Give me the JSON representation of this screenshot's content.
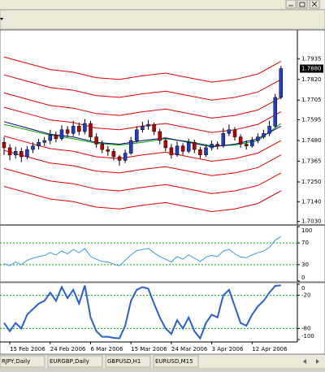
{
  "chart_data": [
    {
      "type": "candlestick",
      "categories": [
        null,
        "15 Feb 2006",
        null,
        null,
        null,
        null,
        null,
        null,
        "24 Feb 2006",
        null,
        null,
        null,
        null,
        null,
        null,
        "6 Mar 2006",
        null,
        null,
        null,
        null,
        null,
        null,
        "15 Mar 2006",
        null,
        null,
        null,
        null,
        null,
        null,
        "24 Mar 2006",
        null,
        null,
        null,
        null,
        null,
        null,
        "3 Apr 2006",
        null,
        null,
        null,
        null,
        null,
        null,
        "12 Apr 2006",
        null,
        null,
        null,
        null,
        null
      ],
      "open": [
        1.747,
        1.744,
        1.74,
        1.742,
        1.739,
        1.743,
        1.745,
        1.747,
        1.748,
        1.751,
        1.749,
        1.754,
        1.752,
        1.756,
        1.753,
        1.7575,
        1.75,
        1.746,
        1.743,
        1.742,
        1.739,
        1.737,
        1.741,
        1.748,
        1.754,
        1.756,
        1.757,
        1.753,
        1.748,
        1.744,
        1.74,
        1.745,
        1.742,
        1.747,
        1.743,
        1.74,
        1.744,
        1.746,
        1.745,
        1.752,
        1.754,
        1.75,
        1.746,
        1.745,
        1.748,
        1.75,
        1.752,
        1.756,
        1.772
      ],
      "high": [
        1.75,
        1.746,
        1.7445,
        1.744,
        1.745,
        1.747,
        1.749,
        1.75,
        1.754,
        1.753,
        1.7565,
        1.756,
        1.759,
        1.758,
        1.76,
        1.759,
        1.752,
        1.748,
        1.745,
        1.7435,
        1.74,
        1.743,
        1.75,
        1.756,
        1.7585,
        1.7595,
        1.758,
        1.7545,
        1.7495,
        1.746,
        1.7475,
        1.7465,
        1.749,
        1.7485,
        1.7445,
        1.746,
        1.748,
        1.7475,
        1.755,
        1.757,
        1.7555,
        1.7515,
        1.748,
        1.75,
        1.752,
        1.754,
        1.759,
        1.774,
        1.7895
      ],
      "low": [
        1.74,
        1.737,
        1.738,
        1.736,
        1.7375,
        1.741,
        1.743,
        1.745,
        1.746,
        1.747,
        1.748,
        1.75,
        1.7505,
        1.751,
        1.7515,
        1.748,
        1.744,
        1.741,
        1.7395,
        1.737,
        1.734,
        1.7355,
        1.74,
        1.747,
        1.7525,
        1.754,
        1.751,
        1.746,
        1.742,
        1.738,
        1.739,
        1.74,
        1.741,
        1.741,
        1.738,
        1.739,
        1.7425,
        1.743,
        1.744,
        1.7505,
        1.748,
        1.744,
        1.743,
        1.744,
        1.7465,
        1.749,
        1.7505,
        1.755,
        1.771
      ],
      "close": [
        1.744,
        1.74,
        1.742,
        1.739,
        1.743,
        1.745,
        1.747,
        1.748,
        1.751,
        1.749,
        1.754,
        1.752,
        1.756,
        1.753,
        1.7575,
        1.75,
        1.746,
        1.743,
        1.742,
        1.739,
        1.737,
        1.741,
        1.748,
        1.754,
        1.756,
        1.757,
        1.753,
        1.748,
        1.744,
        1.74,
        1.745,
        1.742,
        1.747,
        1.743,
        1.74,
        1.744,
        1.746,
        1.745,
        1.752,
        1.754,
        1.75,
        1.746,
        1.745,
        1.748,
        1.75,
        1.752,
        1.756,
        1.772,
        1.788
      ],
      "up_color": "#1f3fc8",
      "down_color": "#c00000",
      "x": [
        0,
        4,
        8,
        12,
        16,
        20,
        24,
        28,
        32,
        36,
        40,
        44,
        48
      ],
      "series": [
        {
          "color": "#e00000",
          "values": [
            1.7945,
            1.791,
            1.7875,
            1.786,
            1.783,
            1.782,
            1.784,
            1.7855,
            1.783,
            1.7805,
            1.782,
            1.785,
            1.792
          ]
        },
        {
          "color": "#e00000",
          "values": [
            1.7845,
            1.781,
            1.7775,
            1.776,
            1.773,
            1.772,
            1.774,
            1.7755,
            1.773,
            1.7705,
            1.772,
            1.775,
            1.782
          ]
        },
        {
          "color": "#e00000",
          "values": [
            1.7745,
            1.771,
            1.7675,
            1.766,
            1.763,
            1.762,
            1.764,
            1.7655,
            1.763,
            1.7605,
            1.762,
            1.765,
            1.772
          ]
        },
        {
          "color": "#e00000",
          "values": [
            1.7665,
            1.763,
            1.7595,
            1.758,
            1.755,
            1.754,
            1.756,
            1.7575,
            1.755,
            1.7525,
            1.754,
            1.757,
            1.764
          ]
        },
        {
          "color": "#e00000",
          "values": [
            1.7505,
            1.747,
            1.7435,
            1.742,
            1.739,
            1.738,
            1.74,
            1.7415,
            1.739,
            1.7365,
            1.738,
            1.741,
            1.748
          ]
        },
        {
          "color": "#e00000",
          "values": [
            1.7425,
            1.739,
            1.7355,
            1.734,
            1.731,
            1.73,
            1.732,
            1.7335,
            1.731,
            1.7285,
            1.73,
            1.733,
            1.74
          ]
        },
        {
          "color": "#e00000",
          "values": [
            1.7325,
            1.729,
            1.7255,
            1.724,
            1.721,
            1.72,
            1.722,
            1.7235,
            1.721,
            1.7185,
            1.72,
            1.723,
            1.73
          ]
        },
        {
          "color": "#e00000",
          "values": [
            1.7225,
            1.719,
            1.7155,
            1.714,
            1.711,
            1.71,
            1.712,
            1.7135,
            1.711,
            1.7085,
            1.71,
            1.713,
            1.72
          ]
        },
        {
          "color": "#00a000",
          "values": [
            1.757,
            1.754,
            1.751,
            1.749,
            1.7465,
            1.7455,
            1.747,
            1.749,
            1.7475,
            1.745,
            1.7455,
            1.748,
            1.7575
          ]
        },
        {
          "color": "#000080",
          "values": [
            1.7585,
            1.755,
            1.7515,
            1.75,
            1.747,
            1.746,
            1.748,
            1.7495,
            1.747,
            1.7445,
            1.746,
            1.749,
            1.756
          ]
        }
      ],
      "ylim": [
        1.7015,
        1.809
      ],
      "yticks": [
        {
          "value": 1.703,
          "label": "1.7030"
        },
        {
          "value": 1.714,
          "label": "1.7140"
        },
        {
          "value": 1.725,
          "label": "1.7250"
        },
        {
          "value": 1.7365,
          "label": "1.7365"
        },
        {
          "value": 1.748,
          "label": "1.7480"
        },
        {
          "value": 1.7595,
          "label": "1.7595"
        },
        {
          "value": 1.7705,
          "label": "1.7705"
        },
        {
          "value": 1.782,
          "label": "1.7820"
        },
        {
          "value": 1.7935,
          "label": "1.7935"
        }
      ],
      "current_price": {
        "value": 1.788,
        "label": "1.7880"
      }
    },
    {
      "type": "line",
      "color": "#3d9be9",
      "line_width": 1,
      "values": [
        32,
        28,
        35,
        30,
        38,
        42,
        45,
        47,
        52,
        48,
        55,
        50,
        58,
        52,
        60,
        45,
        40,
        36,
        35,
        31,
        28,
        38,
        48,
        56,
        58,
        60,
        52,
        45,
        40,
        35,
        45,
        40,
        48,
        42,
        36,
        44,
        47,
        45,
        55,
        58,
        50,
        44,
        43,
        48,
        52,
        55,
        62,
        75,
        82
      ],
      "ylim": [
        0,
        100
      ],
      "yticks": [
        100,
        70,
        30,
        0
      ],
      "level_color": "#00b000"
    },
    {
      "type": "line",
      "color": "#2b5fd0",
      "line_width": 2,
      "values": [
        -70,
        -85,
        -70,
        -80,
        -55,
        -45,
        -35,
        -30,
        -15,
        -30,
        -5,
        -25,
        -10,
        -35,
        -2,
        -60,
        -85,
        -95,
        -95,
        -97,
        -98,
        -75,
        -30,
        -10,
        -5,
        -8,
        -35,
        -60,
        -80,
        -90,
        -65,
        -80,
        -60,
        -85,
        -98,
        -70,
        -55,
        -60,
        -20,
        -10,
        -40,
        -70,
        -75,
        -55,
        -40,
        -30,
        -15,
        -3,
        -2
      ],
      "ylim": [
        -100,
        0
      ],
      "yticks": [
        0,
        -20,
        -80,
        -100
      ],
      "level_color": "#00b000"
    }
  ],
  "tabs": [
    "RJPY,Daily",
    "EURGBP,Daily",
    "GBPUSD,H1",
    "EURUSD,M15"
  ]
}
